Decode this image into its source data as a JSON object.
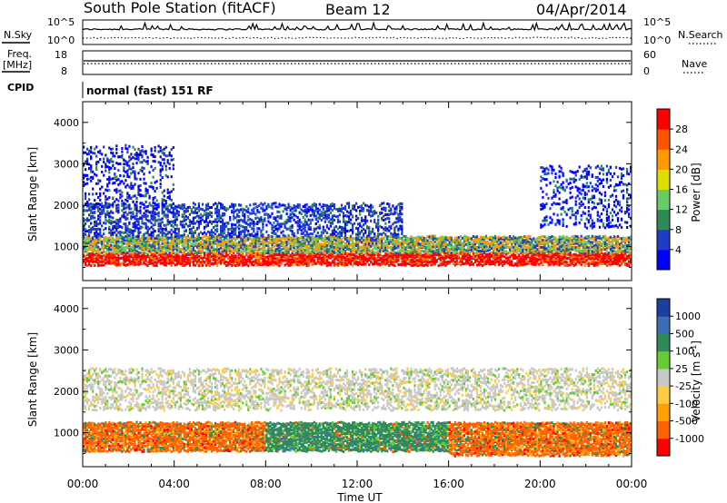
{
  "header": {
    "station": "South Pole Station (fitACF)",
    "beam": "Beam 12",
    "date": "04/Apr/2014"
  },
  "top_panels": {
    "nsky_label": "N.Sky",
    "nsearch_label": "N.Search",
    "nsky_left_ticks": [
      "10^5",
      "10^0"
    ],
    "nsky_right_ticks": [
      "10^5",
      "10^0"
    ],
    "freq_label": "Freq.",
    "freq_unit": "[MHz]",
    "freq_ticks": [
      "18",
      "8"
    ],
    "nave_label": "Nave",
    "nave_ticks": [
      "60",
      "0"
    ],
    "cpid_label": "CPID",
    "cpid_text": "normal (fast) 151 RF"
  },
  "x_axis": {
    "label": "Time UT",
    "ticks": [
      "00:00",
      "04:00",
      "08:00",
      "12:00",
      "16:00",
      "20:00",
      "00:00"
    ],
    "range_hours": [
      0,
      24
    ]
  },
  "chart_data": [
    {
      "type": "heatmap",
      "panel": "power",
      "ylabel": "Slant Range [km]",
      "ylim": [
        180,
        4500
      ],
      "y_ticks": [
        1000,
        2000,
        3000,
        4000
      ],
      "colorbar_label": "Power [dB]",
      "colorbar_ticks": [
        "28",
        "24",
        "20",
        "16",
        "12",
        "8",
        "4"
      ],
      "colorbar_colors": [
        "#0000ff",
        "#1e3cc8",
        "#2e8b57",
        "#66cd66",
        "#dddd00",
        "#ff9900",
        "#ff5500",
        "#ff0000"
      ],
      "bands": [
        {
          "t0": 0.0,
          "t1": 24.0,
          "r0": 600,
          "r1": 900,
          "level": "high"
        },
        {
          "t0": 0.0,
          "t1": 24.0,
          "r0": 900,
          "r1": 1300,
          "level": "mid"
        },
        {
          "t0": 0.0,
          "t1": 14.0,
          "r0": 1300,
          "r1": 2100,
          "level": "low"
        },
        {
          "t0": 0.0,
          "t1": 4.0,
          "r0": 2000,
          "r1": 3500,
          "level": "sparse"
        },
        {
          "t0": 20.0,
          "t1": 24.0,
          "r0": 1500,
          "r1": 3000,
          "level": "sparse"
        }
      ]
    },
    {
      "type": "heatmap",
      "panel": "velocity",
      "ylabel": "Slant Range [km]",
      "ylim": [
        180,
        4500
      ],
      "y_ticks": [
        1000,
        2000,
        3000,
        4000
      ],
      "colorbar_label": "Velocity [m s^-1]",
      "colorbar_ticks": [
        "1000",
        "500",
        "100",
        "25",
        "-25",
        "-100",
        "-500",
        "-1000"
      ],
      "colorbar_colors": [
        "#ff0000",
        "#ff6000",
        "#ffa000",
        "#ffcc44",
        "#c8c8c8",
        "#66cc33",
        "#2e8b57",
        "#3a6fb4",
        "#1a3fa0"
      ],
      "bands": [
        {
          "t0": 0.0,
          "t1": 8.0,
          "r0": 600,
          "r1": 1300,
          "level": "negative"
        },
        {
          "t0": 8.0,
          "t1": 16.0,
          "r0": 600,
          "r1": 1300,
          "level": "positive"
        },
        {
          "t0": 16.0,
          "t1": 24.0,
          "r0": 500,
          "r1": 1300,
          "level": "negative"
        },
        {
          "t0": 0.0,
          "t1": 24.0,
          "r0": 1600,
          "r1": 2600,
          "level": "near-zero"
        }
      ]
    }
  ]
}
